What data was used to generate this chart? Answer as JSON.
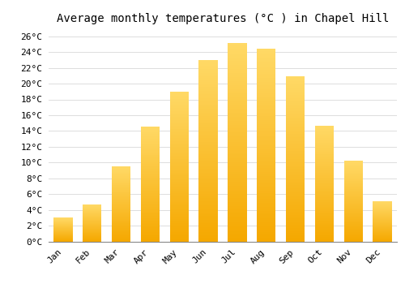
{
  "title": "Average monthly temperatures (°C ) in Chapel Hill",
  "months": [
    "Jan",
    "Feb",
    "Mar",
    "Apr",
    "May",
    "Jun",
    "Jul",
    "Aug",
    "Sep",
    "Oct",
    "Nov",
    "Dec"
  ],
  "values": [
    3.0,
    4.7,
    9.5,
    14.6,
    19.0,
    23.0,
    25.1,
    24.4,
    20.9,
    14.7,
    10.2,
    5.1
  ],
  "bar_color_bottom": "#F5A800",
  "bar_color_top": "#FFD966",
  "background_color": "#FFFFFF",
  "plot_bg_color": "#FFFFFF",
  "grid_color": "#DDDDDD",
  "ylim": [
    0,
    27
  ],
  "ytick_step": 2,
  "title_fontsize": 10,
  "tick_fontsize": 8,
  "font_family": "monospace"
}
